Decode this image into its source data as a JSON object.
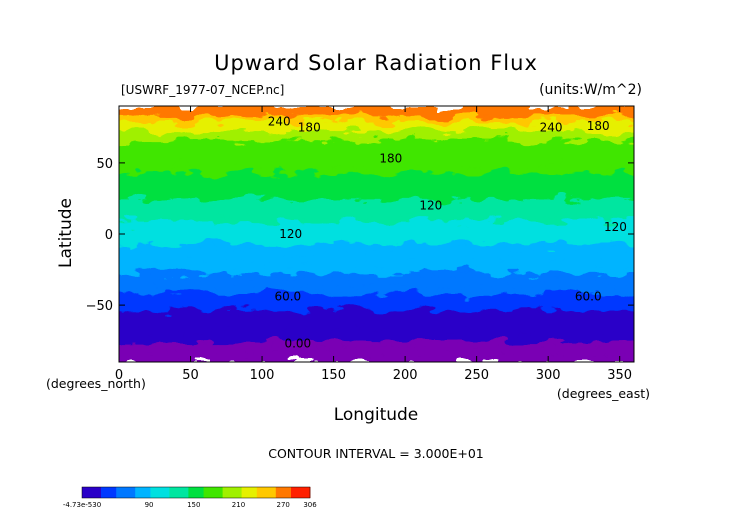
{
  "chart_data": {
    "type": "heatmap",
    "title": "Upward Solar Radiation Flux",
    "file_label": "[USWRF_1977-07_NCEP.nc]",
    "units_label": "(units:W/m^2)",
    "xlabel": "Longitude",
    "ylabel": "Latitude",
    "x_unit_label": "(degrees_east)",
    "y_unit_label": "(degrees_north)",
    "xlim": [
      0,
      360
    ],
    "ylim": [
      -90,
      90
    ],
    "x_ticks": [
      0,
      50,
      100,
      150,
      200,
      250,
      300,
      350
    ],
    "y_ticks": [
      50,
      0,
      -50
    ],
    "contour_interval_text": "CONTOUR INTERVAL = 3.000E+01",
    "contour_labels": [
      {
        "text": "240",
        "lon": 112,
        "lat": 79
      },
      {
        "text": "180",
        "lon": 133,
        "lat": 75
      },
      {
        "text": "240",
        "lon": 302,
        "lat": 75
      },
      {
        "text": "180",
        "lon": 335,
        "lat": 76
      },
      {
        "text": "180",
        "lon": 190,
        "lat": 53
      },
      {
        "text": "120",
        "lon": 218,
        "lat": 20
      },
      {
        "text": "120",
        "lon": 120,
        "lat": 0
      },
      {
        "text": "120",
        "lon": 347,
        "lat": 5
      },
      {
        "text": "60.0",
        "lon": 118,
        "lat": -44
      },
      {
        "text": "60.0",
        "lon": 328,
        "lat": -44
      },
      {
        "text": "0.00",
        "lon": 125,
        "lat": -77
      }
    ],
    "zonal_profile": [
      {
        "lat": 90,
        "value": 275
      },
      {
        "lat": 83,
        "value": 262
      },
      {
        "lat": 78,
        "value": 240
      },
      {
        "lat": 70,
        "value": 195
      },
      {
        "lat": 60,
        "value": 180
      },
      {
        "lat": 45,
        "value": 168
      },
      {
        "lat": 30,
        "value": 150
      },
      {
        "lat": 20,
        "value": 135
      },
      {
        "lat": 10,
        "value": 120
      },
      {
        "lat": 0,
        "value": 108
      },
      {
        "lat": -10,
        "value": 92
      },
      {
        "lat": -20,
        "value": 80
      },
      {
        "lat": -30,
        "value": 68
      },
      {
        "lat": -40,
        "value": 52
      },
      {
        "lat": -50,
        "value": 32
      },
      {
        "lat": -60,
        "value": 15
      },
      {
        "lat": -70,
        "value": 3
      },
      {
        "lat": -78,
        "value": 0
      },
      {
        "lat": -90,
        "value": 0
      }
    ],
    "colorbar": {
      "min": 0,
      "max": 306,
      "labels": [
        "-4.73e-530",
        "90",
        "150",
        "210",
        "270",
        "306"
      ],
      "label_values": [
        0,
        90,
        150,
        210,
        270,
        306
      ],
      "colors": [
        "#2a00c8",
        "#0038ff",
        "#0078ff",
        "#00b4ff",
        "#00e0e0",
        "#00e6a0",
        "#00e040",
        "#40e600",
        "#a0f000",
        "#e6f000",
        "#ffc800",
        "#ff7800",
        "#ff2000"
      ],
      "below_color": "#7a00b4"
    }
  }
}
